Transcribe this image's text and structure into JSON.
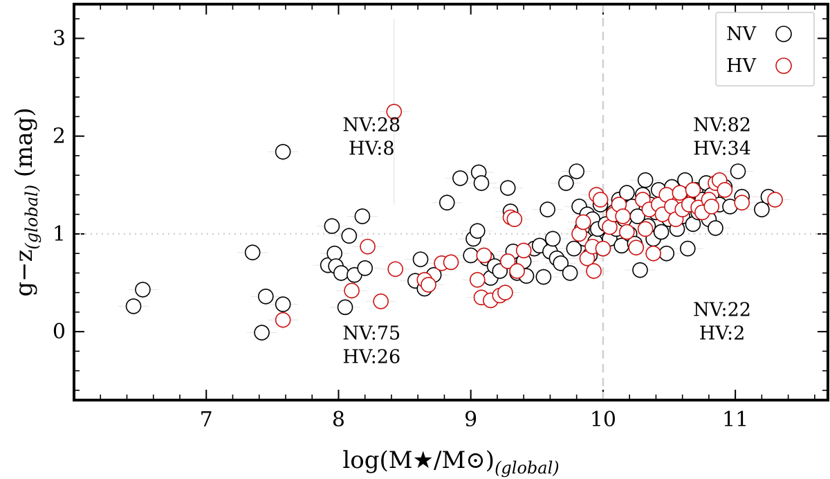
{
  "chart_data": {
    "type": "scatter",
    "xlabel": "log(M★/M⊙)",
    "xlabel_sub": "(global)",
    "ylabel": "g−z",
    "ylabel_sub": "(global)",
    "ylabel_unit": " (mag)",
    "xlim": [
      6.0,
      11.7
    ],
    "ylim": [
      -0.7,
      3.35
    ],
    "xticks": [
      7,
      8,
      9,
      10,
      11
    ],
    "xtick_labels": [
      "7",
      "8",
      "9",
      "10",
      "11"
    ],
    "yticks": [
      0,
      1,
      2,
      3
    ],
    "ytick_labels": [
      "0",
      "1",
      "2",
      "3"
    ],
    "x_minor_step": 0.2,
    "y_minor_step": 0.2,
    "vline": 10,
    "hline": 1,
    "legend": {
      "position": "top-right"
    },
    "colors": {
      "NV": "#000000",
      "HV": "#cc1111",
      "guide": "#d0d0d0",
      "error": "#e4e4e4"
    },
    "annotations": [
      {
        "id": "top-left",
        "lines": [
          "NV:28",
          "HV:8"
        ],
        "x": 8.25,
        "y": 2.05
      },
      {
        "id": "top-right",
        "lines": [
          "NV:82",
          "HV:34"
        ],
        "x": 10.9,
        "y": 2.05
      },
      {
        "id": "bottom-left",
        "lines": [
          "NV:75",
          "HV:26"
        ],
        "x": 8.25,
        "y": -0.08
      },
      {
        "id": "bottom-right",
        "lines": [
          "NV:22",
          "HV:2"
        ],
        "x": 10.9,
        "y": 0.16
      }
    ],
    "series": [
      {
        "name": "NV",
        "marker": "open-circle",
        "points": [
          [
            6.45,
            0.26
          ],
          [
            6.52,
            0.43
          ],
          [
            7.35,
            0.81
          ],
          [
            7.42,
            -0.01
          ],
          [
            7.45,
            0.36
          ],
          [
            7.58,
            1.84
          ],
          [
            7.58,
            0.28
          ],
          [
            7.92,
            0.68
          ],
          [
            7.95,
            1.08
          ],
          [
            7.97,
            0.8
          ],
          [
            7.98,
            0.67
          ],
          [
            8.02,
            0.6
          ],
          [
            8.05,
            0.25
          ],
          [
            8.08,
            0.98
          ],
          [
            8.12,
            0.58
          ],
          [
            8.18,
            1.18
          ],
          [
            8.2,
            0.65
          ],
          [
            8.58,
            0.52
          ],
          [
            8.62,
            0.74
          ],
          [
            8.65,
            0.44
          ],
          [
            8.72,
            0.58
          ],
          [
            8.82,
            1.32
          ],
          [
            8.92,
            1.57
          ],
          [
            9.0,
            0.78
          ],
          [
            9.02,
            0.95
          ],
          [
            9.05,
            1.03
          ],
          [
            9.06,
            1.63
          ],
          [
            9.08,
            1.52
          ],
          [
            9.12,
            0.75
          ],
          [
            9.15,
            0.55
          ],
          [
            9.18,
            0.67
          ],
          [
            9.22,
            0.62
          ],
          [
            9.28,
            1.47
          ],
          [
            9.3,
            1.23
          ],
          [
            9.32,
            0.82
          ],
          [
            9.35,
            0.6
          ],
          [
            9.4,
            0.72
          ],
          [
            9.42,
            0.57
          ],
          [
            9.48,
            0.85
          ],
          [
            9.52,
            0.88
          ],
          [
            9.55,
            0.56
          ],
          [
            9.58,
            1.25
          ],
          [
            9.6,
            0.82
          ],
          [
            9.62,
            0.95
          ],
          [
            9.65,
            0.75
          ],
          [
            9.68,
            0.7
          ],
          [
            9.72,
            1.52
          ],
          [
            9.75,
            0.6
          ],
          [
            9.78,
            0.85
          ],
          [
            9.8,
            1.64
          ],
          [
            9.82,
            1.28
          ],
          [
            9.84,
            1.05
          ],
          [
            9.86,
            0.95
          ],
          [
            9.88,
            1.2
          ],
          [
            9.9,
            0.78
          ],
          [
            9.92,
            1.15
          ],
          [
            9.94,
            0.92
          ],
          [
            9.96,
            1.05
          ],
          [
            9.98,
            1.3
          ],
          [
            10.0,
            0.85
          ],
          [
            10.02,
            1.1
          ],
          [
            10.05,
            0.95
          ],
          [
            10.08,
            1.22
          ],
          [
            10.1,
            1.05
          ],
          [
            10.12,
            1.35
          ],
          [
            10.14,
            0.88
          ],
          [
            10.16,
            1.15
          ],
          [
            10.18,
            1.42
          ],
          [
            10.2,
            1.0
          ],
          [
            10.22,
            1.28
          ],
          [
            10.24,
            0.9
          ],
          [
            10.26,
            1.18
          ],
          [
            10.28,
            0.63
          ],
          [
            10.3,
            1.4
          ],
          [
            10.32,
            1.55
          ],
          [
            10.34,
            1.08
          ],
          [
            10.36,
            1.3
          ],
          [
            10.38,
            0.95
          ],
          [
            10.4,
            1.22
          ],
          [
            10.42,
            1.45
          ],
          [
            10.44,
            1.02
          ],
          [
            10.46,
            1.32
          ],
          [
            10.48,
            0.8
          ],
          [
            10.5,
            1.15
          ],
          [
            10.52,
            1.48
          ],
          [
            10.54,
            1.25
          ],
          [
            10.56,
            1.05
          ],
          [
            10.58,
            1.38
          ],
          [
            10.6,
            1.18
          ],
          [
            10.62,
            1.55
          ],
          [
            10.64,
            0.85
          ],
          [
            10.66,
            1.3
          ],
          [
            10.68,
            1.1
          ],
          [
            10.7,
            1.45
          ],
          [
            10.72,
            1.22
          ],
          [
            10.75,
            1.35
          ],
          [
            10.78,
            1.52
          ],
          [
            10.8,
            1.15
          ],
          [
            10.82,
            1.4
          ],
          [
            10.85,
            1.06
          ],
          [
            10.88,
            1.3
          ],
          [
            10.92,
            1.48
          ],
          [
            10.96,
            1.28
          ],
          [
            11.02,
            1.64
          ],
          [
            11.05,
            1.38
          ],
          [
            11.2,
            1.25
          ],
          [
            11.25,
            1.38
          ]
        ]
      },
      {
        "name": "HV",
        "marker": "open-circle",
        "points": [
          [
            7.58,
            0.12
          ],
          [
            8.1,
            0.42
          ],
          [
            8.22,
            0.87
          ],
          [
            8.32,
            0.31
          ],
          [
            8.42,
            2.25
          ],
          [
            8.43,
            0.64
          ],
          [
            8.65,
            0.53
          ],
          [
            8.68,
            0.48
          ],
          [
            8.78,
            0.7
          ],
          [
            8.85,
            0.71
          ],
          [
            9.05,
            0.53
          ],
          [
            9.08,
            0.35
          ],
          [
            9.1,
            0.78
          ],
          [
            9.15,
            0.32
          ],
          [
            9.22,
            0.37
          ],
          [
            9.26,
            0.4
          ],
          [
            9.28,
            0.72
          ],
          [
            9.3,
            1.17
          ],
          [
            9.33,
            1.15
          ],
          [
            9.35,
            0.62
          ],
          [
            9.4,
            0.83
          ],
          [
            9.82,
            1.0
          ],
          [
            9.85,
            1.12
          ],
          [
            9.88,
            0.75
          ],
          [
            9.92,
            0.87
          ],
          [
            9.93,
            0.62
          ],
          [
            9.95,
            1.4
          ],
          [
            9.98,
            1.35
          ],
          [
            10.0,
            0.85
          ],
          [
            10.05,
            1.07
          ],
          [
            10.08,
            1.2
          ],
          [
            10.12,
            1.3
          ],
          [
            10.15,
            1.18
          ],
          [
            10.18,
            1.02
          ],
          [
            10.25,
            0.86
          ],
          [
            10.3,
            1.35
          ],
          [
            10.32,
            1.05
          ],
          [
            10.35,
            1.25
          ],
          [
            10.38,
            0.8
          ],
          [
            10.42,
            1.3
          ],
          [
            10.45,
            1.2
          ],
          [
            10.48,
            1.4
          ],
          [
            10.52,
            1.28
          ],
          [
            10.55,
            1.15
          ],
          [
            10.58,
            1.42
          ],
          [
            10.6,
            1.25
          ],
          [
            10.65,
            1.3
          ],
          [
            10.68,
            1.45
          ],
          [
            10.72,
            1.27
          ],
          [
            10.75,
            1.22
          ],
          [
            10.8,
            1.35
          ],
          [
            10.82,
            1.28
          ],
          [
            10.85,
            1.52
          ],
          [
            10.88,
            1.55
          ],
          [
            10.92,
            1.45
          ],
          [
            11.05,
            1.32
          ],
          [
            11.3,
            1.35
          ]
        ]
      }
    ]
  }
}
